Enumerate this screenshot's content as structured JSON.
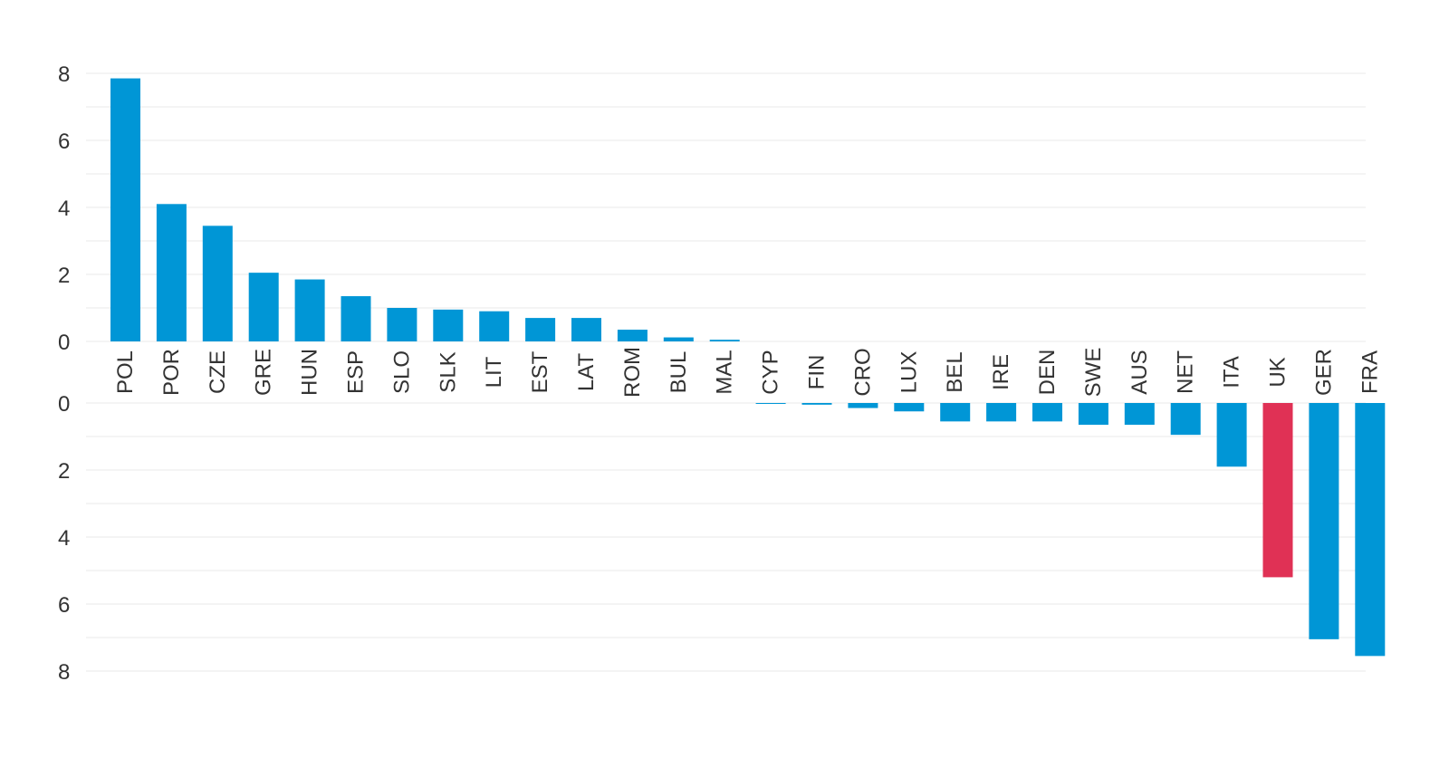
{
  "chart_data": {
    "type": "bar",
    "categories": [
      "POL",
      "POR",
      "CZE",
      "GRE",
      "HUN",
      "ESP",
      "SLO",
      "SLK",
      "LIT",
      "EST",
      "LAT",
      "ROM",
      "BUL",
      "MAL",
      "CYP",
      "FIN",
      "CRO",
      "LUX",
      "BEL",
      "IRE",
      "DEN",
      "SWE",
      "AUS",
      "NET",
      "ITA",
      "UK",
      "GER",
      "FRA"
    ],
    "values": [
      7.85,
      4.1,
      3.45,
      2.05,
      1.85,
      1.35,
      1.0,
      0.95,
      0.9,
      0.7,
      0.7,
      0.35,
      0.12,
      0.05,
      -0.02,
      -0.05,
      -0.15,
      -0.25,
      -0.55,
      -0.55,
      -0.55,
      -0.65,
      -0.65,
      -0.95,
      -1.9,
      -5.2,
      -7.05,
      -7.55
    ],
    "title": "",
    "xlabel": "",
    "ylabel": "",
    "positive_panel": {
      "ylim": [
        0,
        8
      ],
      "ticks": [
        "0",
        "2",
        "4",
        "6",
        "8"
      ]
    },
    "negative_panel": {
      "ylim": [
        0,
        8
      ],
      "ticks": [
        "0",
        "2",
        "4",
        "6",
        "8"
      ]
    },
    "grid": true,
    "colors": {
      "default": "#0096d6",
      "highlight": "#e03155",
      "grid": "#e9e9e9",
      "text": "#333333"
    },
    "highlight_category": "UK"
  }
}
